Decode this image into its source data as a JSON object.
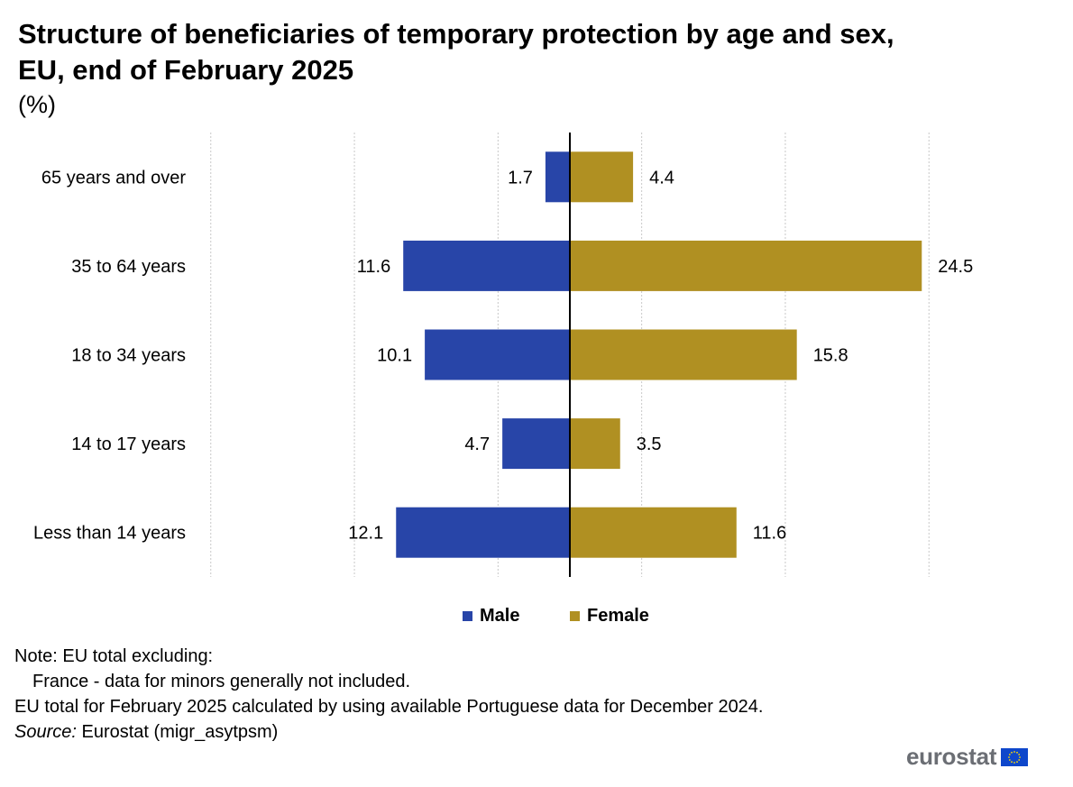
{
  "title": "Structure of beneficiaries of temporary protection by age and sex, EU, end of February 2025",
  "subtitle": "(%)",
  "colors": {
    "male": "#2845A8",
    "female": "#B09022",
    "grid": "#c8c8c8",
    "axis": "#000000",
    "logo_text": "#6b6e74",
    "eu_blue": "#0E47CB",
    "eu_star": "#FFDD00"
  },
  "chart_data": {
    "type": "bar",
    "orientation": "horizontal-diverging",
    "categories": [
      "65 years and over",
      "35 to 64 years",
      "18 to 34 years",
      "14 to 17 years",
      "Less than 14 years"
    ],
    "series": [
      {
        "name": "Male",
        "values": [
          1.7,
          11.6,
          10.1,
          4.7,
          12.1
        ]
      },
      {
        "name": "Female",
        "values": [
          4.4,
          24.5,
          15.8,
          3.5,
          11.6
        ]
      }
    ],
    "xlim": [
      -25,
      25
    ],
    "grid": true,
    "legend_position": "bottom"
  },
  "legend": {
    "male": "Male",
    "female": "Female"
  },
  "notes": {
    "line1": "Note: EU total excluding:",
    "line2": "France - data for minors generally not included.",
    "line3": "EU total for February 2025 calculated by using available Portuguese data for December 2024.",
    "source_label": "Source:",
    "source_text": " Eurostat (migr_asytpsm)"
  },
  "logo": {
    "text": "eurostat",
    "icon": "eu-flag-icon"
  }
}
